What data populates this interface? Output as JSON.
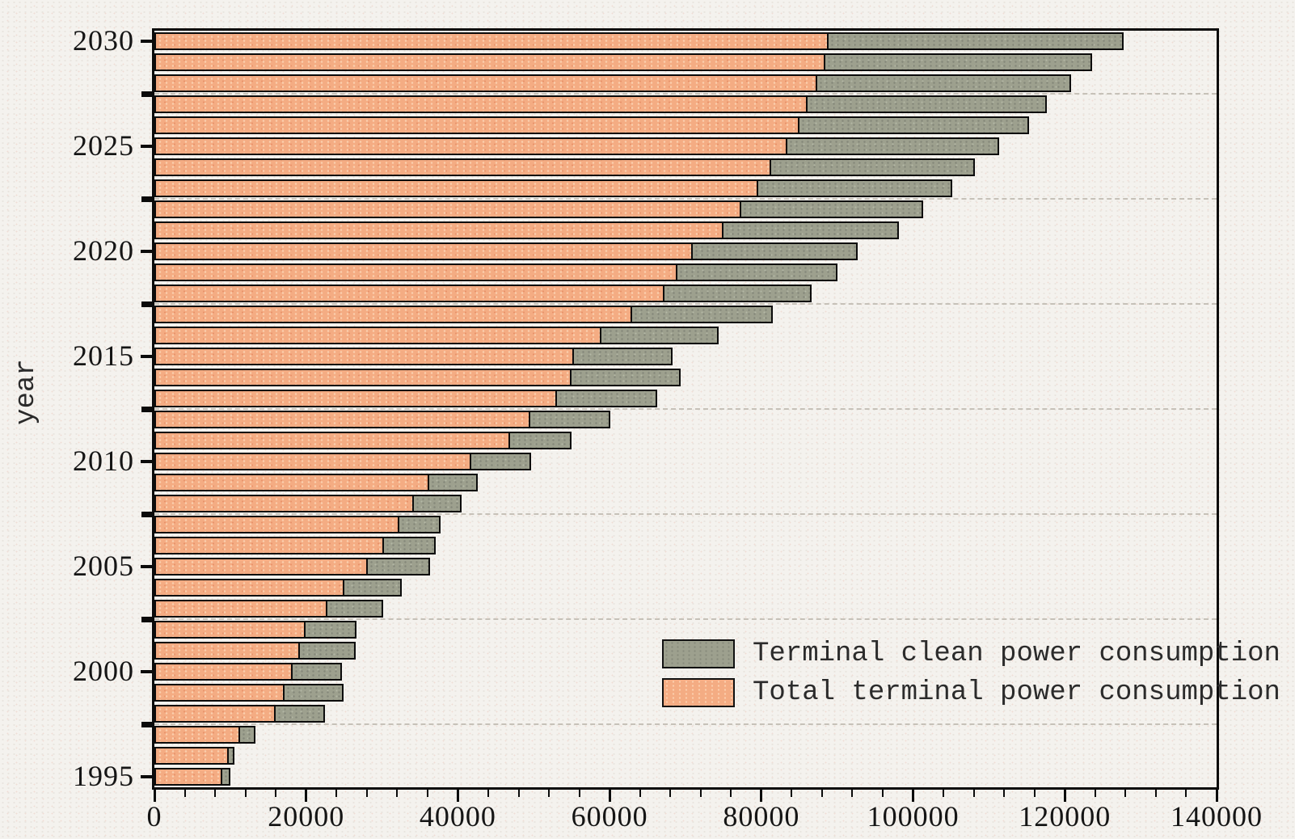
{
  "chart_data": {
    "type": "bar",
    "orientation": "horizontal",
    "title": "",
    "xlabel": "",
    "ylabel": "year",
    "xlim": [
      0,
      140000
    ],
    "x_major_ticks": [
      0,
      20000,
      40000,
      60000,
      80000,
      100000,
      120000,
      140000
    ],
    "x_minor_step": 4000,
    "y_axis_labeled_years": [
      2030,
      2025,
      2020,
      2015,
      2010,
      2005,
      2000,
      1995
    ],
    "gridline_years": [
      2027.5,
      2022.5,
      2017.5,
      2012.5,
      2007.5,
      2002.5,
      1997.5
    ],
    "grid": "dashed-horizontal",
    "legend_position": "inside-lower-right",
    "colors": {
      "total": "#f4ac83",
      "clean": "#9da08e",
      "bar_border": "#0c0c0c",
      "background": "#f4f2ee"
    },
    "legend": {
      "entries": [
        {
          "label": "Terminal clean power consumption",
          "color_key": "clean"
        },
        {
          "label": "Total terminal power consumption",
          "color_key": "total"
        }
      ]
    },
    "series_note": "Each bar: orange segment from 0 = Total terminal power consumption; gray segment stacked after it = Terminal clean power consumption",
    "rows": [
      {
        "year": 2030,
        "total": 88900,
        "clean": 38800
      },
      {
        "year": 2029,
        "total": 88400,
        "clean": 35200
      },
      {
        "year": 2028,
        "total": 87400,
        "clean": 33400
      },
      {
        "year": 2027,
        "total": 86100,
        "clean": 31500
      },
      {
        "year": 2026,
        "total": 85000,
        "clean": 30300
      },
      {
        "year": 2025,
        "total": 83400,
        "clean": 27900
      },
      {
        "year": 2024,
        "total": 81300,
        "clean": 26800
      },
      {
        "year": 2023,
        "total": 79600,
        "clean": 25600
      },
      {
        "year": 2022,
        "total": 77300,
        "clean": 24000
      },
      {
        "year": 2021,
        "total": 75000,
        "clean": 23100
      },
      {
        "year": 2020,
        "total": 71000,
        "clean": 21700
      },
      {
        "year": 2019,
        "total": 68900,
        "clean": 21100
      },
      {
        "year": 2018,
        "total": 67200,
        "clean": 19400
      },
      {
        "year": 2017,
        "total": 63000,
        "clean": 18500
      },
      {
        "year": 2016,
        "total": 58900,
        "clean": 15500
      },
      {
        "year": 2015,
        "total": 55300,
        "clean": 13000
      },
      {
        "year": 2014,
        "total": 55000,
        "clean": 14400
      },
      {
        "year": 2013,
        "total": 53100,
        "clean": 13200
      },
      {
        "year": 2012,
        "total": 49500,
        "clean": 10600
      },
      {
        "year": 2011,
        "total": 46900,
        "clean": 8100
      },
      {
        "year": 2010,
        "total": 41800,
        "clean": 7900
      },
      {
        "year": 2009,
        "total": 36200,
        "clean": 6400
      },
      {
        "year": 2008,
        "total": 34200,
        "clean": 6300
      },
      {
        "year": 2007,
        "total": 32300,
        "clean": 5400
      },
      {
        "year": 2006,
        "total": 30300,
        "clean": 6800
      },
      {
        "year": 2005,
        "total": 28100,
        "clean": 8200
      },
      {
        "year": 2004,
        "total": 25000,
        "clean": 7600
      },
      {
        "year": 2003,
        "total": 22800,
        "clean": 7300
      },
      {
        "year": 2002,
        "total": 19900,
        "clean": 6700
      },
      {
        "year": 2001,
        "total": 19200,
        "clean": 7300
      },
      {
        "year": 2000,
        "total": 18200,
        "clean": 6500
      },
      {
        "year": 1999,
        "total": 17200,
        "clean": 7700
      },
      {
        "year": 1998,
        "total": 16000,
        "clean": 6500
      },
      {
        "year": 1997,
        "total": 11300,
        "clean": 2000
      },
      {
        "year": 1996,
        "total": 9800,
        "clean": 800
      },
      {
        "year": 1995,
        "total": 9000,
        "clean": 1000
      }
    ]
  }
}
